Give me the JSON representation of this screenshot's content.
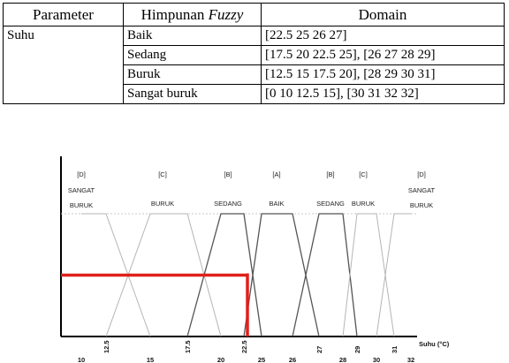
{
  "table": {
    "headers": {
      "parameter": "Parameter",
      "himpunan": "Himpunan",
      "fuzzy": "Fuzzy",
      "domain": "Domain"
    },
    "parameter": "Suhu",
    "rows": [
      {
        "himpunan": "Baik",
        "domain": "[22.5 25 26 27]"
      },
      {
        "himpunan": "Sedang",
        "domain": "[17.5 20 22.5 25], [26 27 28 29]"
      },
      {
        "himpunan": "Buruk",
        "domain": "[12.5 15 17.5 20], [28 29 30 31]"
      },
      {
        "himpunan": "Sangat buruk",
        "domain": "[0 10 12.5 15], [30 31 32 32]"
      }
    ]
  },
  "chart_data": {
    "type": "line",
    "xlabel": "Suhu (°C)",
    "x_ticks_lower": [
      "10",
      "15",
      "20",
      "25",
      "26",
      "28",
      "30",
      "32"
    ],
    "x_ticks_upper": [
      "12.5",
      "17.5",
      "22.5",
      "27",
      "29",
      "31"
    ],
    "category_labels": [
      {
        "code": "[D]",
        "lines": [
          "SANGAT",
          "BURUK"
        ]
      },
      {
        "code": "[C]",
        "lines": [
          "BURUK"
        ]
      },
      {
        "code": "[B]",
        "lines": [
          "SEDANG"
        ]
      },
      {
        "code": "[A]",
        "lines": [
          "BAIK"
        ]
      },
      {
        "code": "[B]",
        "lines": [
          "SEDANG"
        ]
      },
      {
        "code": "[C]",
        "lines": [
          "BURUK"
        ]
      },
      {
        "code": "[D]",
        "lines": [
          "SANGAT",
          "BURUK"
        ]
      }
    ],
    "series": [
      {
        "name": "Sangat buruk",
        "points": [
          [
            10,
            1
          ],
          [
            12.5,
            1
          ],
          [
            15,
            0
          ]
        ]
      },
      {
        "name": "Buruk",
        "points": [
          [
            12.5,
            0
          ],
          [
            15,
            1
          ],
          [
            17.5,
            1
          ],
          [
            20,
            0
          ]
        ]
      },
      {
        "name": "Sedang",
        "points": [
          [
            17.5,
            0
          ],
          [
            20,
            1
          ],
          [
            22.5,
            1
          ],
          [
            25,
            0
          ]
        ]
      },
      {
        "name": "Baik",
        "points": [
          [
            22.5,
            0
          ],
          [
            25,
            1
          ],
          [
            26,
            1
          ],
          [
            27,
            0
          ]
        ]
      },
      {
        "name": "Sedang",
        "points": [
          [
            26,
            0
          ],
          [
            27,
            1
          ],
          [
            28,
            1
          ],
          [
            29,
            0
          ]
        ]
      },
      {
        "name": "Buruk",
        "points": [
          [
            28,
            0
          ],
          [
            29,
            1
          ],
          [
            30,
            1
          ],
          [
            31,
            0
          ]
        ]
      },
      {
        "name": "Sangat buruk",
        "points": [
          [
            30,
            0
          ],
          [
            31,
            1
          ],
          [
            32,
            1
          ]
        ]
      }
    ],
    "highlight": {
      "x": 23,
      "membership": 0.5,
      "color": "#e0201b"
    },
    "line_color": "#b5b5b5",
    "emphasis_color": "#555555"
  }
}
